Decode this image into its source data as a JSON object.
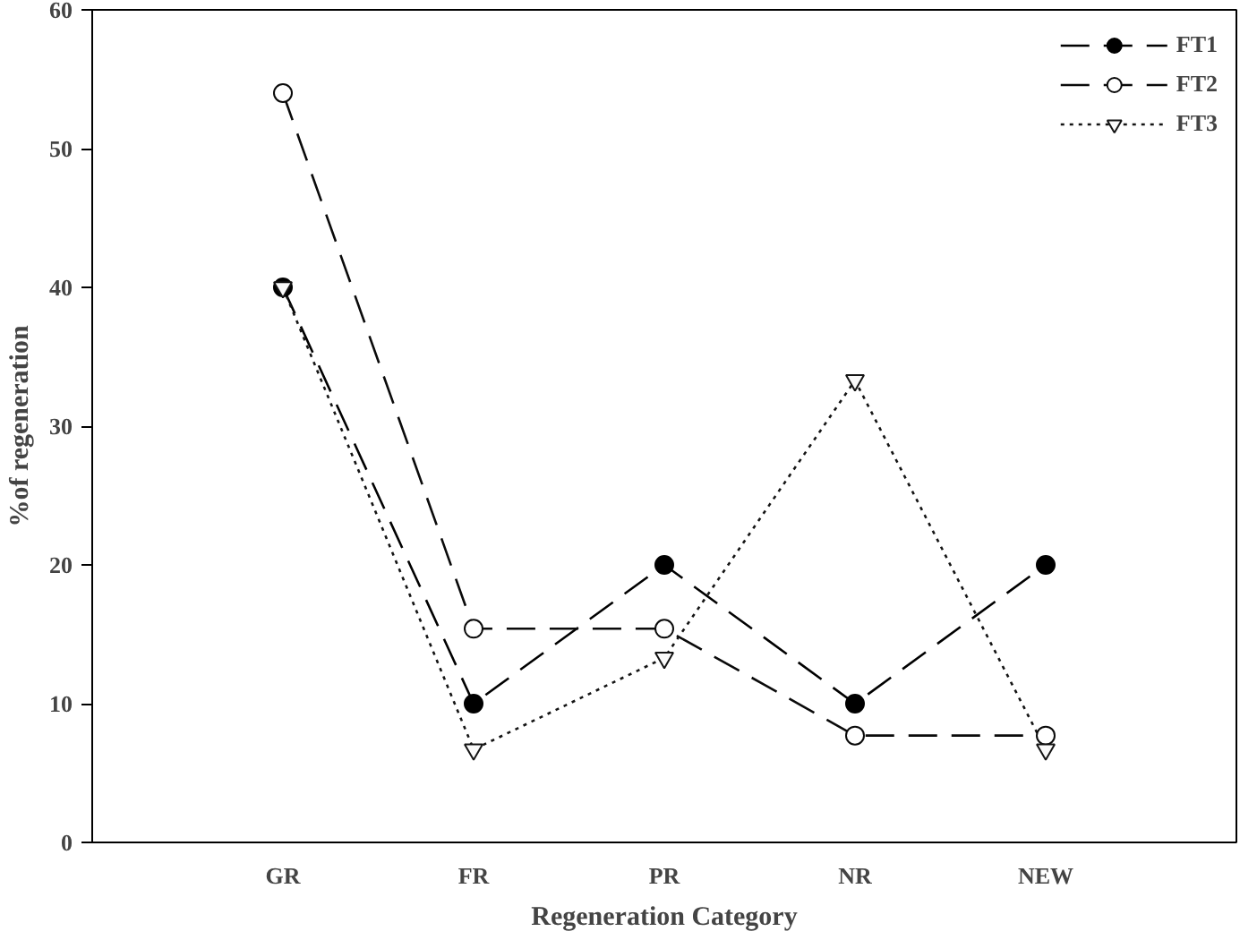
{
  "chart_data": {
    "type": "line",
    "xlabel": "Regeneration Category",
    "ylabel": "%of regeneration",
    "categories": [
      "GR",
      "FR",
      "PR",
      "NR",
      "NEW"
    ],
    "ylim": [
      0,
      60
    ],
    "yticks": [
      0,
      10,
      20,
      30,
      40,
      50,
      60
    ],
    "grid": false,
    "legend": "top right",
    "series": [
      {
        "name": "FT1",
        "color": "#000000",
        "marker": "circle",
        "line_style": "dashed",
        "values": [
          40,
          10,
          20,
          10,
          20
        ]
      },
      {
        "name": "FT2",
        "color": "#0a0a0a",
        "colors": [
          "#ffffff",
          "#ffffff",
          "#ffffff",
          "#ffffff",
          "#ffffff"
        ],
        "marker": "circle",
        "line_style": "dashed",
        "values": [
          54,
          15.4,
          15.4,
          7.7,
          7.7
        ]
      },
      {
        "name": "FT3",
        "color": "#141414",
        "colors": [
          "#fafafa",
          "#fafafa",
          "#fafafa",
          "#fafafa",
          "#fafafa"
        ],
        "marker": "triangle",
        "line_style": "dotted",
        "values": [
          40,
          6.7,
          13.3,
          33.3,
          6.7
        ]
      }
    ]
  }
}
